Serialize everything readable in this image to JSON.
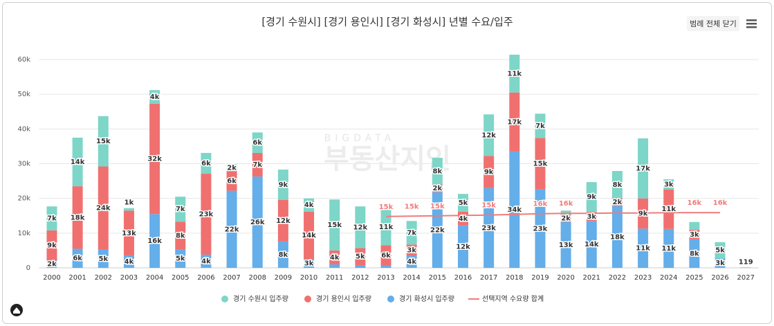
{
  "chart_data": {
    "type": "bar",
    "title": "[경기 수원시] [경기 용인시] [경기 화성시] 년별 수요/입주",
    "button": "범례 전체 닫기",
    "watermark": [
      "BIGDATA",
      "부동산지인"
    ],
    "stacked": true,
    "grid": true,
    "legend": "bottom",
    "categories": [
      "2000",
      "2001",
      "2002",
      "2003",
      "2004",
      "2005",
      "2006",
      "2007",
      "2008",
      "2009",
      "2010",
      "2011",
      "2012",
      "2013",
      "2014",
      "2015",
      "2016",
      "2017",
      "2018",
      "2019",
      "2020",
      "2021",
      "2022",
      "2023",
      "2024",
      "2025",
      "2026",
      "2027"
    ],
    "ylim": [
      0,
      60000
    ],
    "yticks": [
      0,
      {
        "value": 10000,
        "label": "10k"
      },
      {
        "value": 20000,
        "label": "20k"
      },
      {
        "value": 30000,
        "label": "30k"
      },
      {
        "value": 40000,
        "label": "40k"
      },
      {
        "value": 50000,
        "label": "50k"
      },
      {
        "value": 60000,
        "label": "60k"
      }
    ],
    "series": [
      {
        "name": "경기 수원시 입주량",
        "type": "bar",
        "color": "#7dd6c8",
        "values": [
          6900,
          14000,
          14500,
          700,
          3900,
          7200,
          6000,
          2000,
          5900,
          8700,
          3800,
          14700,
          12000,
          10500,
          6800,
          7700,
          5100,
          12000,
          10900,
          7000,
          1100,
          8600,
          7900,
          17300,
          2900,
          2200,
          4700,
          0
        ],
        "value_labels": [
          "7k",
          "14k",
          "15k",
          "1k",
          "4k",
          "7k",
          "6k",
          "2k",
          "6k",
          "9k",
          "4k",
          "15k",
          "12k",
          "11k",
          "7k",
          "8k",
          "5k",
          "12k",
          "11k",
          "7k",
          null,
          "9k",
          "8k",
          "17k",
          "3k",
          null,
          "5k",
          null
        ]
      },
      {
        "name": "경기 용인시 입주량",
        "type": "bar",
        "color": "#f07070",
        "values": [
          8700,
          18000,
          24000,
          13000,
          31800,
          8000,
          23300,
          5600,
          6800,
          12000,
          13700,
          4000,
          4900,
          5800,
          3200,
          2200,
          4000,
          9200,
          17000,
          14800,
          2200,
          2600,
          2200,
          8700,
          11400,
          2800,
          0,
          0
        ],
        "value_labels": [
          "9k",
          "18k",
          "24k",
          "13k",
          "32k",
          "8k",
          "23k",
          "6k",
          "7k",
          "12k",
          "14k",
          "4k",
          "5k",
          "6k",
          "3k",
          "2k",
          "4k",
          "9k",
          "17k",
          "15k",
          "2k",
          "3k",
          "2k",
          "9k",
          "11k",
          "3k",
          null,
          null
        ]
      },
      {
        "name": "경기 화성시 입주량",
        "type": "bar",
        "color": "#64aeea",
        "values": [
          2100,
          5500,
          5200,
          3500,
          15500,
          5300,
          3800,
          22200,
          26300,
          7600,
          2500,
          1000,
          800,
          700,
          3500,
          21800,
          12200,
          23000,
          33500,
          22600,
          13200,
          13500,
          17800,
          11300,
          11200,
          8200,
          2700,
          119
        ],
        "value_labels": [
          "2k",
          "6k",
          "5k",
          "4k",
          "16k",
          "5k",
          "4k",
          "22k",
          "26k",
          "8k",
          "3k",
          null,
          null,
          null,
          "4k",
          "22k",
          "12k",
          "23k",
          "34k",
          "23k",
          "13k",
          "14k",
          "18k",
          "11k",
          "11k",
          "8k",
          "3k",
          "119"
        ]
      },
      {
        "name": "선택지역 수요량 합계",
        "type": "line",
        "color": "#ef7b7b",
        "values": [
          null,
          null,
          null,
          null,
          null,
          null,
          null,
          null,
          null,
          null,
          null,
          null,
          null,
          14800,
          14900,
          15000,
          15100,
          15200,
          15400,
          15600,
          15700,
          15700,
          15800,
          15800,
          15900,
          15900,
          15900,
          null
        ],
        "value_labels": [
          null,
          null,
          null,
          null,
          null,
          null,
          null,
          null,
          null,
          null,
          null,
          null,
          null,
          "15k",
          "15k",
          "15k",
          null,
          "15k",
          null,
          "16k",
          "16k",
          null,
          null,
          null,
          null,
          "16k",
          "16k",
          null
        ]
      }
    ]
  }
}
